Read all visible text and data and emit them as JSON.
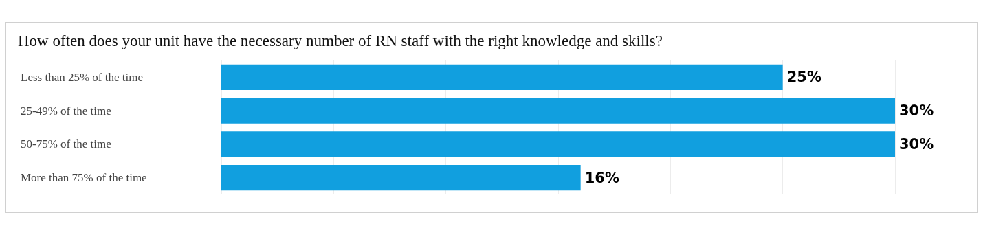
{
  "chart_data": {
    "type": "bar",
    "orientation": "horizontal",
    "title": "How often does your unit have the necessary number of RN staff with the right knowledge and skills?",
    "categories": [
      "Less than 25% of the time",
      "25-49% of the time",
      "50-75% of the time",
      "More than 75% of the time"
    ],
    "values": [
      25,
      30,
      30,
      16
    ],
    "value_labels": [
      "25%",
      "30%",
      "30%",
      "16%"
    ],
    "color": "#119fdf",
    "xlim": [
      0,
      30
    ],
    "xticks": [
      {
        "value": 0,
        "label": null
      },
      {
        "value": 5,
        "label": null
      },
      {
        "value": 10,
        "label": null
      },
      {
        "value": 15,
        "label": null
      },
      {
        "value": 20,
        "label": null
      },
      {
        "value": 25,
        "label": null
      },
      {
        "value": 30,
        "label": null
      }
    ],
    "grid": "x",
    "tick_labels": "y"
  }
}
